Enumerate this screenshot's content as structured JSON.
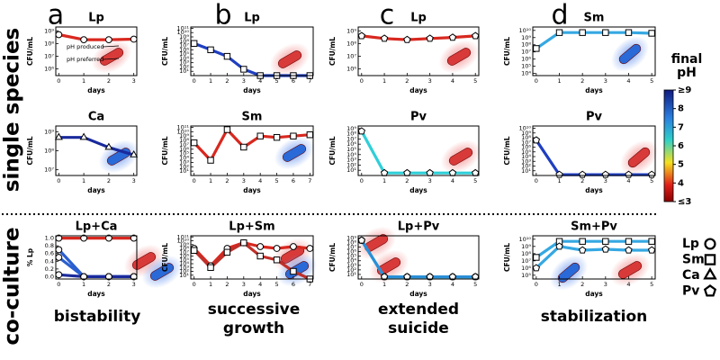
{
  "panel_letters": [
    "a",
    "b",
    "c",
    "d"
  ],
  "row_labels": [
    "single species",
    "co-culture"
  ],
  "captions": [
    [
      "bistability"
    ],
    [
      "successive",
      "growth"
    ],
    [
      "extended",
      "suicide"
    ],
    [
      "stabilization"
    ]
  ],
  "legend": [
    {
      "name": "Lp",
      "marker": "circle"
    },
    {
      "name": "Sm",
      "marker": "square"
    },
    {
      "name": "Ca",
      "marker": "triangle"
    },
    {
      "name": "Pv",
      "marker": "pentagon"
    }
  ],
  "colorbar": {
    "title": [
      "final",
      "pH"
    ],
    "lim": [
      3,
      9
    ],
    "ticks": [
      {
        "value": 9,
        "label": "≥9"
      },
      8,
      7,
      6,
      5,
      4,
      {
        "value": 3,
        "label": "≤3"
      }
    ]
  },
  "chart_data": [
    {
      "type": "line",
      "title": "Lp",
      "xlabel": "days",
      "ylabel": "CFU/mL",
      "log_y": true,
      "annotations": [
        "pH produced",
        "pH preferred"
      ],
      "x": [
        0,
        1,
        2,
        3
      ],
      "xlim": [
        -0.12,
        3.12
      ],
      "xticks": [
        0,
        1,
        2,
        3
      ],
      "ylim": [
        300000,
        2000000000
      ],
      "yticks": [
        {
          "value": 1000000,
          "label": "10⁶"
        },
        {
          "value": 10000000,
          "label": "10⁷"
        },
        {
          "value": 100000000,
          "label": "10⁸"
        },
        {
          "value": 1000000000,
          "label": "10⁹"
        }
      ],
      "series": [
        {
          "marker": "circle",
          "color": "#d8281f",
          "values": [
            500000000,
            200000000,
            200000000,
            220000000
          ]
        }
      ]
    },
    {
      "type": "line",
      "title": "Lp",
      "xlabel": "days",
      "ylabel": "CFU/mL",
      "log_y": true,
      "x": [
        0,
        1,
        2,
        3,
        4,
        5,
        6,
        7
      ],
      "xlim": [
        -0.2,
        7.2
      ],
      "xticks": [
        0,
        1,
        2,
        3,
        4,
        5,
        6,
        7
      ],
      "ylim": [
        1,
        200000000000
      ],
      "yticks": [
        {
          "value": 10,
          "label": "10¹"
        },
        {
          "value": 100,
          "label": "10²"
        },
        {
          "value": 1000,
          "label": "10³"
        },
        {
          "value": 10000,
          "label": "10⁴"
        },
        {
          "value": 100000,
          "label": "10⁵"
        },
        {
          "value": 1000000,
          "label": "10⁶"
        },
        {
          "value": 10000000,
          "label": "10⁷"
        },
        {
          "value": 100000000,
          "label": "10⁸"
        },
        {
          "value": 1000000000,
          "label": "10⁹"
        },
        {
          "value": 10000000000,
          "label": "10¹⁰"
        },
        {
          "value": 100000000000,
          "label": "10¹¹"
        }
      ],
      "series": [
        {
          "marker": "square",
          "color": "#1f3fc0",
          "values": [
            30000000,
            1000000,
            30000,
            30,
            1,
            1,
            1,
            1
          ]
        }
      ]
    },
    {
      "type": "line",
      "title": "Lp",
      "xlabel": "days",
      "ylabel": "CFU/mL",
      "log_y": true,
      "x": [
        0,
        1,
        2,
        3,
        4,
        5
      ],
      "xlim": [
        -0.15,
        5.15
      ],
      "xticks": [
        0,
        1,
        2,
        3,
        4,
        5
      ],
      "ylim": [
        300000,
        2000000000
      ],
      "yticks": [
        {
          "value": 1000000,
          "label": "10⁶"
        },
        {
          "value": 10000000,
          "label": "10⁷"
        },
        {
          "value": 100000000,
          "label": "10⁸"
        },
        {
          "value": 1000000000,
          "label": "10⁹"
        }
      ],
      "series": [
        {
          "marker": "pentagon",
          "color": "#d8281f",
          "values": [
            400000000,
            250000000,
            200000000,
            250000000,
            300000000,
            400000000
          ]
        }
      ]
    },
    {
      "type": "line",
      "title": "Sm",
      "xlabel": "days",
      "ylabel": "CFU/mL",
      "log_y": true,
      "x": [
        0,
        1,
        2,
        3,
        4,
        5
      ],
      "xlim": [
        -0.15,
        5.15
      ],
      "xticks": [
        0,
        1,
        2,
        3,
        4,
        5
      ],
      "ylim": [
        5000,
        30000000000
      ],
      "yticks": [
        {
          "value": 10000,
          "label": "10⁴"
        },
        {
          "value": 100000,
          "label": "10⁵"
        },
        {
          "value": 1000000,
          "label": "10⁶"
        },
        {
          "value": 10000000,
          "label": "10⁷"
        },
        {
          "value": 100000000,
          "label": "10⁸"
        },
        {
          "value": 1000000000,
          "label": "10⁹"
        },
        {
          "value": 10000000000,
          "label": "10¹⁰"
        }
      ],
      "series": [
        {
          "marker": "square",
          "color": "#35a8e2",
          "values": [
            30000000,
            5000000000,
            5000000000,
            5000000000,
            5000000000,
            4000000000
          ]
        }
      ]
    },
    {
      "type": "line",
      "title": "Ca",
      "xlabel": "days",
      "ylabel": "CFU/mL",
      "log_y": true,
      "x": [
        0,
        1,
        2,
        3
      ],
      "xlim": [
        -0.12,
        3.12
      ],
      "xticks": [
        0,
        1,
        2,
        3
      ],
      "ylim": [
        5000000,
        2000000000
      ],
      "yticks": [
        {
          "value": 10000000,
          "label": "10⁷"
        },
        {
          "value": 100000000,
          "label": "10⁸"
        },
        {
          "value": 1000000000,
          "label": "10⁹"
        }
      ],
      "series": [
        {
          "marker": "triangle",
          "color": "#1a2a9c",
          "values": [
            500000000,
            500000000,
            150000000,
            60000000
          ]
        }
      ]
    },
    {
      "type": "line",
      "title": "Sm",
      "xlabel": "days",
      "ylabel": "CFU/mL",
      "log_y": true,
      "x": [
        0,
        1,
        2,
        3,
        4,
        5,
        6,
        7
      ],
      "xlim": [
        -0.2,
        7.2
      ],
      "xticks": [
        0,
        1,
        2,
        3,
        4,
        5,
        6,
        7
      ],
      "ylim": [
        1,
        200000000000
      ],
      "yticks": [
        {
          "value": 10,
          "label": "10¹"
        },
        {
          "value": 100,
          "label": "10²"
        },
        {
          "value": 1000,
          "label": "10³"
        },
        {
          "value": 10000,
          "label": "10⁴"
        },
        {
          "value": 100000,
          "label": "10⁵"
        },
        {
          "value": 1000000,
          "label": "10⁶"
        },
        {
          "value": 10000000,
          "label": "10⁷"
        },
        {
          "value": 100000000,
          "label": "10⁸"
        },
        {
          "value": 1000000000,
          "label": "10⁹"
        },
        {
          "value": 10000000000,
          "label": "10¹⁰"
        },
        {
          "value": 100000000000,
          "label": "10¹¹"
        }
      ],
      "series": [
        {
          "marker": "square",
          "color": "#d8281f",
          "values": [
            30000000,
            3000,
            30000000000,
            3000000,
            1000000000,
            500000000,
            1000000000,
            2000000000
          ]
        }
      ]
    },
    {
      "type": "line",
      "title": "Pv",
      "xlabel": "days",
      "ylabel": "CFU/mL",
      "log_y": true,
      "x": [
        0,
        1,
        2,
        3,
        4,
        5
      ],
      "xlim": [
        -0.15,
        5.15
      ],
      "xticks": [
        0,
        1,
        2,
        3,
        4,
        5
      ],
      "ylim": [
        1,
        3000000000
      ],
      "yticks": [
        {
          "value": 10,
          "label": "10¹"
        },
        {
          "value": 100,
          "label": "10²"
        },
        {
          "value": 1000,
          "label": "10³"
        },
        {
          "value": 10000,
          "label": "10⁴"
        },
        {
          "value": 100000,
          "label": "10⁵"
        },
        {
          "value": 1000000,
          "label": "10⁶"
        },
        {
          "value": 10000000,
          "label": "10⁷"
        },
        {
          "value": 100000000,
          "label": "10⁸"
        },
        {
          "value": 1000000000,
          "label": "10⁹"
        }
      ],
      "series": [
        {
          "marker": "pentagon",
          "color": "#2fcfd8",
          "values": [
            300000000,
            3,
            3,
            3,
            3,
            3
          ]
        }
      ]
    },
    {
      "type": "line",
      "title": "Pv",
      "xlabel": "days",
      "ylabel": "CFU/mL",
      "log_y": true,
      "x": [
        0,
        1,
        2,
        3,
        4,
        5
      ],
      "xlim": [
        -0.15,
        5.15
      ],
      "xticks": [
        0,
        1,
        2,
        3,
        4,
        5
      ],
      "ylim": [
        1,
        30000000000
      ],
      "yticks": [
        {
          "value": 10,
          "label": "10¹"
        },
        {
          "value": 100,
          "label": "10²"
        },
        {
          "value": 1000,
          "label": "10³"
        },
        {
          "value": 10000,
          "label": "10⁴"
        },
        {
          "value": 100000,
          "label": "10⁵"
        },
        {
          "value": 1000000,
          "label": "10⁶"
        },
        {
          "value": 10000000,
          "label": "10⁷"
        },
        {
          "value": 100000000,
          "label": "10⁸"
        },
        {
          "value": 1000000000,
          "label": "10⁹"
        },
        {
          "value": 10000000000,
          "label": "10¹⁰"
        }
      ],
      "series": [
        {
          "marker": "pentagon",
          "color": "#1f3fc0",
          "values": [
            30000000,
            1.5,
            1.5,
            1.5,
            1.5,
            1.5
          ]
        }
      ]
    },
    {
      "type": "line",
      "title": "Lp+Ca",
      "xlabel": "days",
      "ylabel": "% Lp",
      "log_y": false,
      "x": [
        0,
        1,
        2,
        3
      ],
      "xlim": [
        -0.12,
        3.12
      ],
      "xticks": [
        0,
        1,
        2,
        3
      ],
      "ylim": [
        -0.06,
        1.06
      ],
      "yticks": [
        {
          "value": 0,
          "label": "0.0"
        },
        0.2,
        0.4,
        0.6,
        0.8,
        {
          "value": 1,
          "label": "1.0"
        }
      ],
      "series": [
        {
          "marker": "circle",
          "color": "#d8281f",
          "values": [
            1,
            1,
            1,
            1
          ]
        },
        {
          "marker": "circle",
          "color": "#2a5fd0",
          "values": [
            0.7,
            0,
            0,
            0
          ]
        },
        {
          "marker": "circle",
          "color": "#2a5fd0",
          "values": [
            0.5,
            0,
            0,
            0
          ]
        },
        {
          "marker": "circle",
          "color": "#1a2a9c",
          "values": [
            0.05,
            0,
            0,
            0
          ]
        }
      ]
    },
    {
      "type": "line",
      "title": "Lp+Sm",
      "xlabel": "days",
      "ylabel": "CFU/mL",
      "log_y": true,
      "x": [
        0,
        1,
        2,
        3,
        4,
        5,
        6,
        7
      ],
      "xlim": [
        -0.2,
        7.2
      ],
      "xticks": [
        0,
        1,
        2,
        3,
        4,
        5,
        6,
        7
      ],
      "ylim": [
        1,
        200000000000
      ],
      "yticks": [
        {
          "value": 10,
          "label": "10¹"
        },
        {
          "value": 100,
          "label": "10²"
        },
        {
          "value": 1000,
          "label": "10³"
        },
        {
          "value": 10000,
          "label": "10⁴"
        },
        {
          "value": 100000,
          "label": "10⁵"
        },
        {
          "value": 1000000,
          "label": "10⁶"
        },
        {
          "value": 10000000,
          "label": "10⁷"
        },
        {
          "value": 100000000,
          "label": "10⁸"
        },
        {
          "value": 1000000000,
          "label": "10⁹"
        },
        {
          "value": 10000000000,
          "label": "10¹⁰"
        },
        {
          "value": 100000000000,
          "label": "10¹¹"
        }
      ],
      "series": [
        {
          "marker": "circle",
          "color": "#d8281f",
          "values": [
            100000000,
            3000,
            100000000,
            3000000000,
            300000000,
            100000000,
            300000000,
            100000000
          ]
        },
        {
          "marker": "square",
          "color": "#c0302a",
          "values": [
            30000000,
            1000,
            10000000,
            3000000000,
            1000000,
            100000,
            100,
            1
          ]
        }
      ]
    },
    {
      "type": "line",
      "title": "Lp+Pv",
      "xlabel": "days",
      "ylabel": "CFU/mL",
      "log_y": true,
      "x": [
        0,
        1,
        2,
        3,
        4,
        5
      ],
      "xlim": [
        -0.15,
        5.15
      ],
      "xticks": [
        0,
        1,
        2,
        3,
        4,
        5
      ],
      "ylim": [
        1,
        3000000000
      ],
      "yticks": [
        {
          "value": 10,
          "label": "10¹"
        },
        {
          "value": 100,
          "label": "10²"
        },
        {
          "value": 1000,
          "label": "10³"
        },
        {
          "value": 10000,
          "label": "10⁴"
        },
        {
          "value": 100000,
          "label": "10⁵"
        },
        {
          "value": 1000000,
          "label": "10⁶"
        },
        {
          "value": 10000000,
          "label": "10⁷"
        },
        {
          "value": 100000000,
          "label": "10⁸"
        },
        {
          "value": 1000000000,
          "label": "10⁹"
        }
      ],
      "series": [
        {
          "marker": "circle",
          "color": "#2fcfd8",
          "values": [
            300000000,
            3,
            3,
            3,
            3,
            3
          ]
        },
        {
          "marker": "pentagon",
          "color": "#2a8fd8",
          "values": [
            300000000,
            3,
            3,
            3,
            3,
            3
          ]
        }
      ]
    },
    {
      "type": "line",
      "title": "Sm+Pv",
      "xlabel": "days",
      "ylabel": "CFU/mL",
      "log_y": true,
      "x": [
        0,
        1,
        2,
        3,
        4,
        5
      ],
      "xlim": [
        -0.15,
        5.15
      ],
      "xticks": [
        0,
        1,
        2,
        3,
        4,
        5
      ],
      "ylim": [
        30000,
        30000000000
      ],
      "yticks": [
        {
          "value": 100000,
          "label": "10⁵"
        },
        {
          "value": 1000000,
          "label": "10⁶"
        },
        {
          "value": 10000000,
          "label": "10⁷"
        },
        {
          "value": 100000000,
          "label": "10⁸"
        },
        {
          "value": 1000000000,
          "label": "10⁹"
        },
        {
          "value": 10000000000,
          "label": "10¹⁰"
        }
      ],
      "series": [
        {
          "marker": "square",
          "color": "#35a8e2",
          "values": [
            30000000,
            5000000000,
            5000000000,
            5000000000,
            5000000000,
            5000000000
          ]
        },
        {
          "marker": "pentagon",
          "color": "#35a8e2",
          "values": [
            1000000,
            1000000000,
            300000000,
            400000000,
            300000000,
            300000000
          ]
        }
      ]
    }
  ]
}
